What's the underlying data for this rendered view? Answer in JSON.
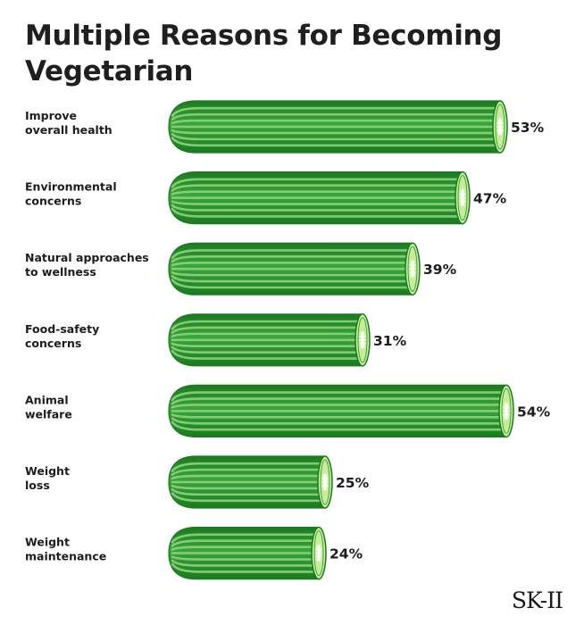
{
  "page": {
    "title": "Multiple Reasons for Becoming Vegetarian",
    "brand": "SK-II"
  },
  "colors": {
    "dark_green": "#1a7a1f",
    "mid_green": "#39a63a",
    "light_stripe": "#8fd27e",
    "cut_face": "#c9ec9c",
    "cut_center": "#ffffff"
  },
  "chart_data": {
    "type": "bar",
    "orientation": "horizontal",
    "bar_style": "cucumber",
    "title": "Multiple Reasons for Becoming Vegetarian",
    "categories": [
      [
        "Improve",
        "overall health"
      ],
      [
        "Environmental",
        "concerns"
      ],
      [
        "Natural approaches",
        "to wellness"
      ],
      [
        "Food-safety",
        "concerns"
      ],
      [
        "Animal",
        "welfare"
      ],
      [
        "Weight",
        "loss"
      ],
      [
        "Weight",
        "maintenance"
      ]
    ],
    "values": [
      53,
      47,
      39,
      31,
      54,
      25,
      24
    ],
    "value_labels": [
      "53%",
      "47%",
      "39%",
      "31%",
      "54%",
      "25%",
      "24%"
    ],
    "unit": "%",
    "grid": false,
    "legend": "none"
  }
}
